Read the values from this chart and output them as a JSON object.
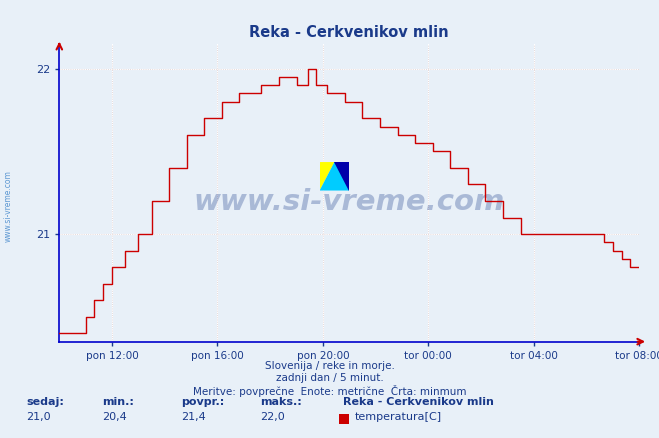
{
  "title": "Reka - Cerkvenikov mlin",
  "bg_color": "#e8f0f8",
  "plot_bg_color": "#e8f0f8",
  "line_color": "#cc0000",
  "grid_color_major": "#ffffff",
  "grid_color_minor": "#f0d8d8",
  "axis_color": "#0000cc",
  "text_color": "#1a3a8a",
  "tick_color": "#cc0000",
  "ylim_min": 20.35,
  "ylim_max": 22.15,
  "yticks": [
    21.0,
    22.0
  ],
  "xlabel_ticks": [
    "pon 12:00",
    "pon 16:00",
    "pon 20:00",
    "tor 00:00",
    "tor 04:00",
    "tor 08:00"
  ],
  "xtick_pos": [
    24,
    72,
    120,
    168,
    216,
    264
  ],
  "footer_line1": "Slovenija / reke in morje.",
  "footer_line2": "zadnji dan / 5 minut.",
  "footer_line3": "Meritve: povprečne  Enote: metrične  Črta: minmum",
  "stats_labels": [
    "sedaj:",
    "min.:",
    "povpr.:",
    "maks.:"
  ],
  "stats_values": [
    "21,0",
    "20,4",
    "21,4",
    "22,0"
  ],
  "legend_station": "Reka - Cerkvenikov mlin",
  "legend_label": "temperatura[C]",
  "legend_color": "#cc0000",
  "watermark": "www.si-vreme.com",
  "watermark_color": "#1a3a8a",
  "sidebar_text": "www.si-vreme.com",
  "sidebar_color": "#4488cc"
}
